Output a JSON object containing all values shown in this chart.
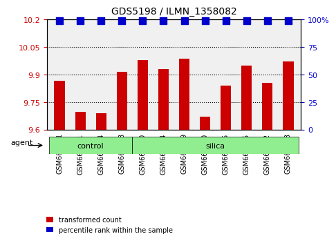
{
  "title": "GDS5198 / ILMN_1358082",
  "samples": [
    "GSM665761",
    "GSM665771",
    "GSM665774",
    "GSM665788",
    "GSM665750",
    "GSM665754",
    "GSM665769",
    "GSM665770",
    "GSM665775",
    "GSM665785",
    "GSM665792",
    "GSM665793"
  ],
  "red_values": [
    9.865,
    9.695,
    9.69,
    9.915,
    9.98,
    9.93,
    9.985,
    9.67,
    9.84,
    9.95,
    9.855,
    9.97
  ],
  "blue_values": [
    99,
    99,
    99,
    99,
    99,
    99,
    99,
    99,
    99,
    99,
    99,
    99
  ],
  "groups": [
    {
      "label": "control",
      "start": 0,
      "end": 4
    },
    {
      "label": "silica",
      "start": 4,
      "end": 12
    }
  ],
  "ylim_left": [
    9.6,
    10.2
  ],
  "yticks_left": [
    9.6,
    9.75,
    9.9,
    10.05,
    10.2
  ],
  "ytick_labels_left": [
    "9.6",
    "9.75",
    "9.9",
    "10.05",
    "10.2"
  ],
  "ylim_right": [
    0,
    100
  ],
  "yticks_right": [
    0,
    25,
    50,
    75,
    100
  ],
  "ytick_labels_right": [
    "0",
    "25",
    "50",
    "75",
    "100%"
  ],
  "bar_color": "#cc0000",
  "dot_color": "#0000cc",
  "agent_label": "agent",
  "legend_items": [
    {
      "color": "#cc0000",
      "label": "transformed count"
    },
    {
      "color": "#0000cc",
      "label": "percentile rank within the sample"
    }
  ],
  "background_color": "#ffffff",
  "plot_bg_color": "#f0f0f0",
  "group_bg_colors": [
    "#90ee90",
    "#90ee90"
  ],
  "bar_width": 0.5,
  "dot_size": 60
}
